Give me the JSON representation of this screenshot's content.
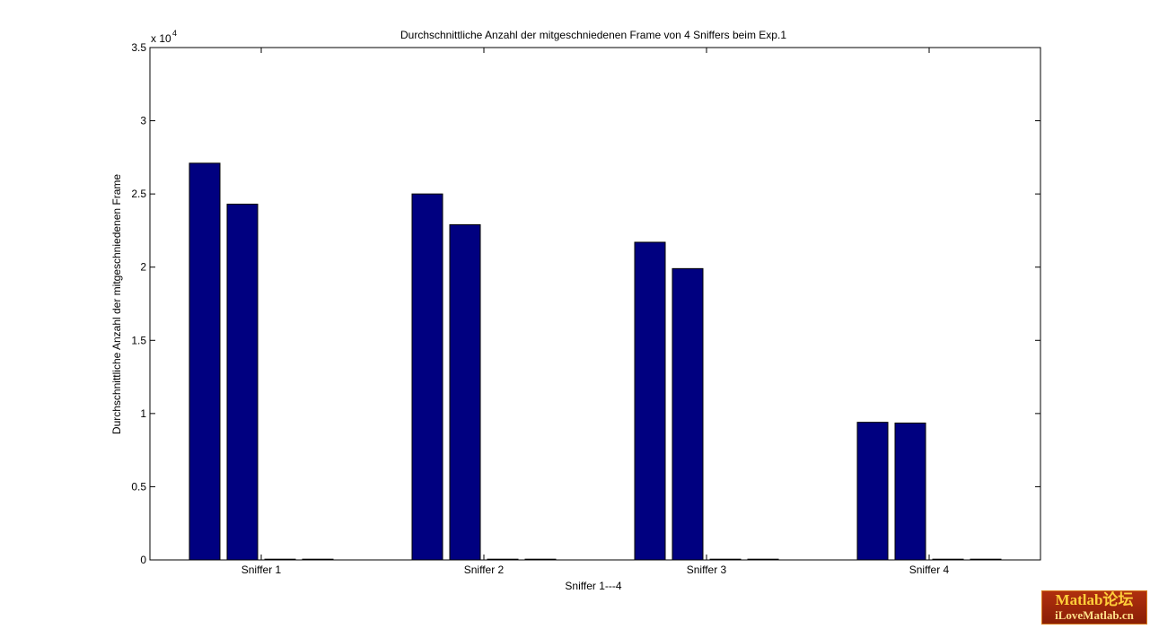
{
  "chart_data": {
    "type": "bar",
    "title": "Durchschnittliche Anzahl der mitgeschniedenen Frame von 4 Sniffers beim Exp.1",
    "xlabel": "Sniffer 1---4",
    "ylabel": "Durchschnittliche Anzahl der mitgeschniedenen Frame",
    "categories": [
      "Sniffer 1",
      "Sniffer 2",
      "Sniffer 3",
      "Sniffer 4"
    ],
    "series": [
      {
        "values": [
          27100,
          25000,
          21700,
          9400
        ]
      },
      {
        "values": [
          24300,
          22900,
          19900,
          9350
        ]
      },
      {
        "values": [
          50,
          50,
          50,
          50
        ]
      },
      {
        "values": [
          50,
          50,
          50,
          50
        ]
      }
    ],
    "ylim": [
      0,
      35000
    ],
    "yticks": [
      0,
      0.5,
      1,
      1.5,
      2,
      2.5,
      3,
      3.5
    ],
    "ytick_labels": [
      "0",
      "0.5",
      "1",
      "1.5",
      "2",
      "2.5",
      "3",
      "3.5"
    ],
    "y_exponent_label": {
      "base": "x 10",
      "exp": "4"
    },
    "bar_color": "#000080",
    "grid": false
  },
  "watermark": {
    "line1": "Matlab论坛",
    "line2": "iLoveMatlab.cn"
  }
}
